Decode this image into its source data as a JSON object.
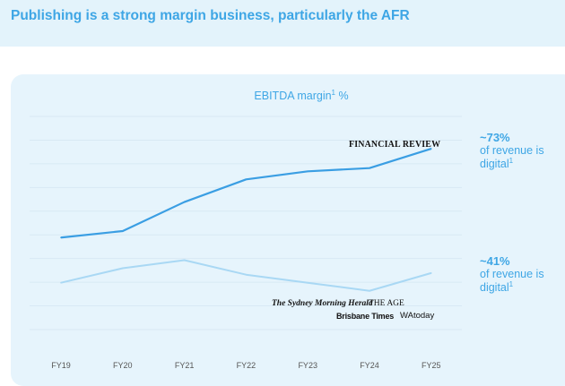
{
  "page_title": "Publishing is a strong margin business, particularly the AFR",
  "colors": {
    "series_dark": "#3a9ee3",
    "series_light": "#a9d8f4",
    "accent": "#3ea6e5",
    "grid": "#d8e9f4",
    "panel": "#e6f4fc",
    "header": "#e3f3fb"
  },
  "chart_data": {
    "type": "line",
    "title": "EBITDA margin",
    "title_sup": "1",
    "title_suffix": " %",
    "categories": [
      "FY19",
      "FY20",
      "FY21",
      "FY22",
      "FY23",
      "FY24",
      "FY25"
    ],
    "series": [
      {
        "name": "FINANCIAL REVIEW",
        "values": [
          4.9,
          5.3,
          7.1,
          8.5,
          9.0,
          9.2,
          10.4
        ]
      },
      {
        "name": "The Sydney Morning Herald, THE AGE, Brisbane Times, WAtoday",
        "values": [
          2.1,
          3.0,
          3.5,
          2.6,
          2.1,
          1.6,
          2.7
        ]
      }
    ],
    "ylim": [
      -0.8,
      12.4
    ],
    "grid": true,
    "y_tick_labels_shown": false
  },
  "callouts": [
    {
      "pct": "~73%",
      "line1": "of revenue is",
      "line2": "digital",
      "sup": "1"
    },
    {
      "pct": "~41%",
      "line1": "of revenue is",
      "line2": "digital",
      "sup": "1"
    }
  ],
  "logos": {
    "afr": "FINANCIAL REVIEW",
    "smh": "The Sydney Morning Herald",
    "age": "THE AGE",
    "bt": "Brisbane Times",
    "wa": "WAtoday"
  }
}
